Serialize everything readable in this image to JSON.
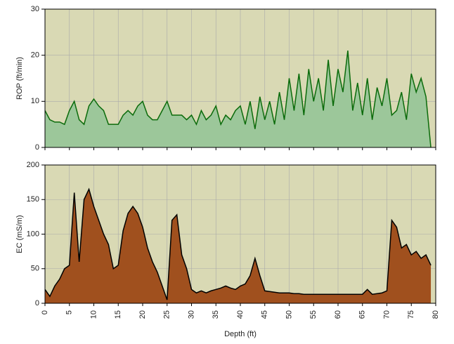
{
  "chart_data": [
    {
      "type": "area",
      "ylabel": "ROP (ft/min)",
      "x": [
        0,
        1,
        2,
        3,
        4,
        5,
        6,
        7,
        8,
        9,
        10,
        11,
        12,
        13,
        14,
        15,
        16,
        17,
        18,
        19,
        20,
        21,
        22,
        23,
        24,
        25,
        26,
        27,
        28,
        29,
        30,
        31,
        32,
        33,
        34,
        35,
        36,
        37,
        38,
        39,
        40,
        41,
        42,
        43,
        44,
        45,
        46,
        47,
        48,
        49,
        50,
        51,
        52,
        53,
        54,
        55,
        56,
        57,
        58,
        59,
        60,
        61,
        62,
        63,
        64,
        65,
        66,
        67,
        68,
        69,
        70,
        71,
        72,
        73,
        74,
        75,
        76,
        77,
        78,
        79
      ],
      "values": [
        8,
        6,
        5.5,
        5.5,
        5,
        8,
        10,
        6,
        5,
        9,
        10.5,
        9,
        8,
        5,
        5,
        5,
        7,
        8,
        7,
        9,
        10,
        7,
        6,
        6,
        8,
        10,
        7,
        7,
        7,
        6,
        7,
        5,
        8,
        6,
        7,
        9,
        5,
        7,
        6,
        8,
        9,
        5,
        10,
        4,
        11,
        6,
        10,
        5,
        12,
        6,
        15,
        8,
        16,
        7,
        17,
        10,
        15,
        8,
        19,
        9,
        17,
        12,
        21,
        8,
        14,
        7,
        15,
        6,
        13,
        9,
        15,
        7,
        8,
        12,
        6,
        16,
        12,
        15,
        11,
        0
      ],
      "color": "#0b6b0b",
      "fill": "#9cc79a",
      "background": "#d9d9b4",
      "grid": true,
      "xlim": [
        0,
        80
      ],
      "ylim": [
        0,
        30
      ],
      "yticks": [
        0,
        10,
        20,
        30
      ]
    },
    {
      "type": "area",
      "ylabel": "EC (mS/m)",
      "xlabel": "Depth (ft)",
      "x": [
        0,
        1,
        2,
        3,
        4,
        5,
        6,
        7,
        8,
        9,
        10,
        11,
        12,
        13,
        14,
        15,
        16,
        17,
        18,
        19,
        20,
        21,
        22,
        23,
        24,
        25,
        26,
        27,
        28,
        29,
        30,
        31,
        32,
        33,
        34,
        35,
        36,
        37,
        38,
        39,
        40,
        41,
        42,
        43,
        44,
        45,
        46,
        47,
        48,
        49,
        50,
        51,
        52,
        53,
        54,
        55,
        56,
        57,
        58,
        59,
        60,
        61,
        62,
        63,
        64,
        65,
        66,
        67,
        68,
        69,
        70,
        71,
        72,
        73,
        74,
        75,
        76,
        77,
        78,
        79
      ],
      "values": [
        20,
        10,
        25,
        35,
        50,
        55,
        160,
        60,
        150,
        165,
        140,
        120,
        100,
        85,
        50,
        55,
        105,
        130,
        140,
        130,
        110,
        80,
        60,
        45,
        25,
        5,
        120,
        128,
        70,
        50,
        20,
        15,
        18,
        15,
        18,
        20,
        22,
        25,
        22,
        20,
        25,
        28,
        40,
        65,
        40,
        18,
        17,
        16,
        15,
        15,
        15,
        14,
        14,
        13,
        13,
        13,
        13,
        13,
        13,
        13,
        13,
        13,
        13,
        13,
        13,
        13,
        20,
        13,
        14,
        15,
        18,
        120,
        110,
        80,
        85,
        70,
        75,
        65,
        70,
        55
      ],
      "color": "#000000",
      "fill": "#a0501e",
      "background": "#d9d9b4",
      "grid": true,
      "xlim": [
        0,
        80
      ],
      "xticks": [
        0,
        5,
        10,
        15,
        20,
        25,
        30,
        35,
        40,
        45,
        50,
        55,
        60,
        65,
        70,
        75,
        80
      ],
      "ylim": [
        0,
        200
      ],
      "yticks": [
        0,
        50,
        100,
        150,
        200
      ]
    }
  ]
}
